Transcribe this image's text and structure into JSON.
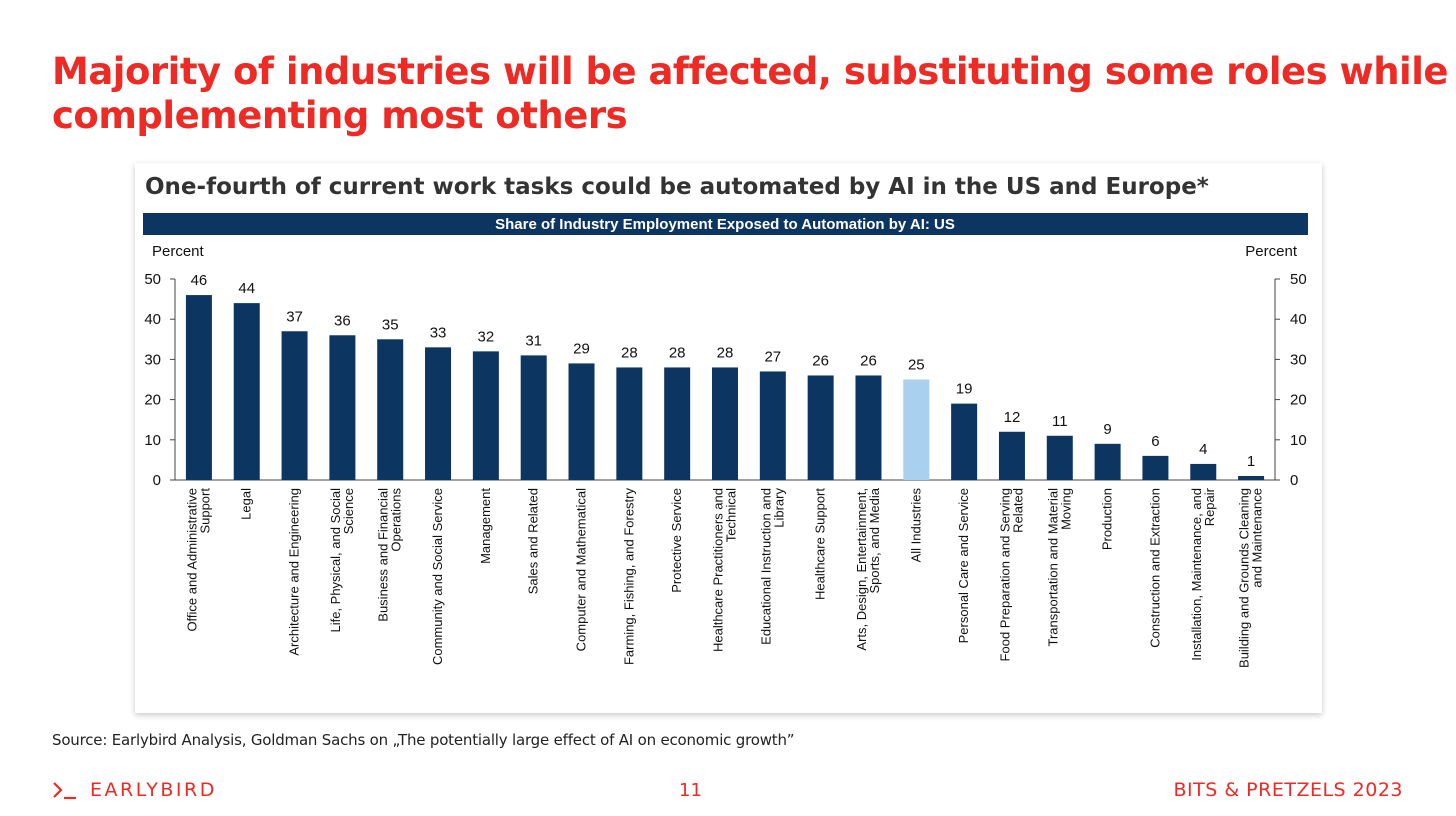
{
  "slide": {
    "title_lines": [
      "Majority of industries will be affected, substituting some roles while",
      "complementing most others"
    ],
    "source": "Source: Earlybird Analysis, Goldman Sachs on „The potentially large effect of AI on economic growth”",
    "brand": "EARLYBIRD",
    "brand_icon": "prompt-chevron-icon",
    "page_number": "11",
    "event": "BITS & PRETZELS 2023",
    "accent_color": "#ee2a24"
  },
  "chart_data": {
    "type": "bar",
    "title": "One-fourth of current work tasks could be automated by AI in the US and Europe*",
    "subtitle": "Share of Industry Employment Exposed to Automation by AI: US",
    "ylabel_left": "Percent",
    "ylabel_right": "Percent",
    "ylim": [
      0,
      50
    ],
    "yticks": [
      0,
      10,
      20,
      30,
      40,
      50
    ],
    "grid": false,
    "bar_color": "#0d3561",
    "highlight_color": "#a9d0ef",
    "highlight_category": "All Industries",
    "categories": [
      [
        "Office and Administrative",
        "Support"
      ],
      [
        "Legal"
      ],
      [
        "Architecture and Engineering"
      ],
      [
        "Life, Physical, and Social",
        "Science"
      ],
      [
        "Business and Financial",
        "Operations"
      ],
      [
        "Community and Social Service"
      ],
      [
        "Management"
      ],
      [
        "Sales and Related"
      ],
      [
        "Computer and Mathematical"
      ],
      [
        "Farming, Fishing, and Forestry"
      ],
      [
        "Protective Service"
      ],
      [
        "Healthcare Practitioners and",
        "Technical"
      ],
      [
        "Educational Instruction and",
        "Library"
      ],
      [
        "Healthcare Support"
      ],
      [
        "Arts, Design, Entertainment,",
        "Sports, and Media"
      ],
      [
        "All Industries"
      ],
      [
        "Personal Care and Service"
      ],
      [
        "Food Preparation and Serving",
        "Related"
      ],
      [
        "Transportation and Material",
        "Moving"
      ],
      [
        "Production"
      ],
      [
        "Construction and Extraction"
      ],
      [
        "Installation, Maintenance, and",
        "Repair"
      ],
      [
        "Building and Grounds Cleaning",
        "and Maintenance"
      ]
    ],
    "values": [
      46,
      44,
      37,
      36,
      35,
      33,
      32,
      31,
      29,
      28,
      28,
      28,
      27,
      26,
      26,
      25,
      19,
      12,
      11,
      9,
      6,
      4,
      1
    ]
  }
}
